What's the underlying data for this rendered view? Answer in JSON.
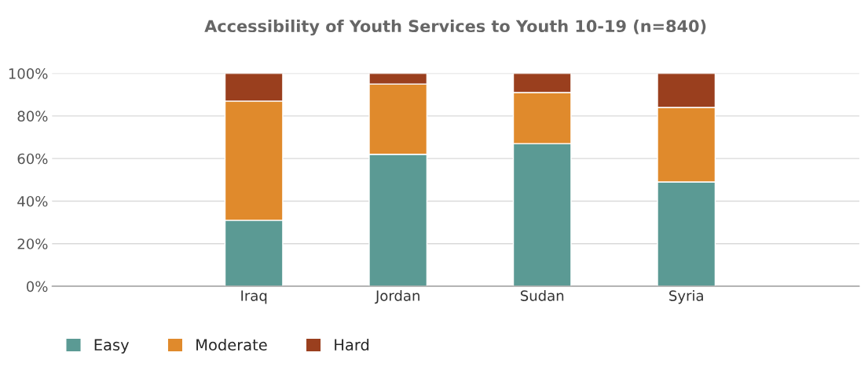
{
  "chart_data": {
    "type": "bar",
    "title": "Accessibility of Youth Services to Youth 10-19 (n=840)",
    "categories": [
      "Iraq",
      "Jordan",
      "Sudan",
      "Syria"
    ],
    "series": [
      {
        "name": "Easy",
        "color": "#5b9a94",
        "values": [
          31,
          62,
          67,
          49
        ]
      },
      {
        "name": "Moderate",
        "color": "#e08a2c",
        "values": [
          56,
          33,
          24,
          35
        ]
      },
      {
        "name": "Hard",
        "color": "#9a3f1e",
        "values": [
          13,
          5,
          9,
          16
        ]
      }
    ],
    "stacked": true,
    "ylim": [
      0,
      100
    ],
    "yticks": [
      {
        "value": 0,
        "label": "0%"
      },
      {
        "value": 20,
        "label": "20%"
      },
      {
        "value": 40,
        "label": "40%"
      },
      {
        "value": 60,
        "label": "60%"
      },
      {
        "value": 80,
        "label": "80%"
      },
      {
        "value": 100,
        "label": "100%"
      }
    ],
    "grid": "y",
    "legend": "bottom left"
  }
}
